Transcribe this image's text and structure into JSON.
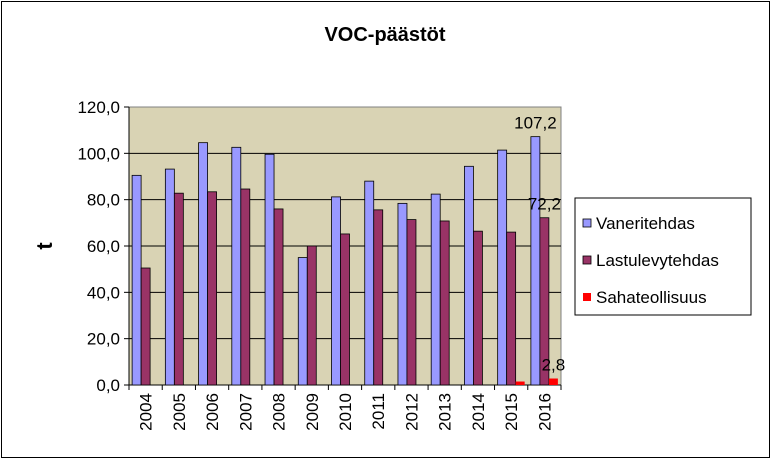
{
  "chart_data": {
    "type": "bar",
    "title": "VOC-päästöt",
    "xlabel": "",
    "ylabel": "t",
    "ylim": [
      0,
      120
    ],
    "ytick_step": 20,
    "ytick_labels": [
      "0,0",
      "20,0",
      "40,0",
      "60,0",
      "80,0",
      "100,0",
      "120,0"
    ],
    "categories": [
      "2004",
      "2005",
      "2006",
      "2007",
      "2008",
      "2009",
      "2010",
      "2011",
      "2012",
      "2013",
      "2014",
      "2015",
      "2016"
    ],
    "series": [
      {
        "name": "Vaneritehdas",
        "color": "#9999FF",
        "values": [
          90.5,
          93.2,
          104.6,
          102.6,
          99.6,
          55.0,
          81.2,
          88.0,
          78.4,
          82.4,
          94.4,
          101.4,
          107.2
        ]
      },
      {
        "name": "Lastulevytehdas",
        "color": "#993366",
        "values": [
          50.5,
          82.8,
          83.4,
          84.6,
          76.0,
          60.0,
          65.2,
          75.6,
          71.4,
          70.8,
          66.4,
          66.0,
          72.2
        ]
      },
      {
        "name": "Sahateollisuus",
        "color": "#FF0000",
        "values": [
          null,
          null,
          null,
          null,
          null,
          null,
          null,
          null,
          null,
          null,
          null,
          1.5,
          2.8
        ]
      }
    ],
    "data_labels": [
      {
        "series": 0,
        "index": 12,
        "text": "107,2"
      },
      {
        "series": 1,
        "index": 12,
        "text": "72,2"
      },
      {
        "series": 2,
        "index": 12,
        "text": "2,8"
      }
    ],
    "legend_position": "right",
    "plot_background": "#D9D3B4",
    "grid": true
  }
}
